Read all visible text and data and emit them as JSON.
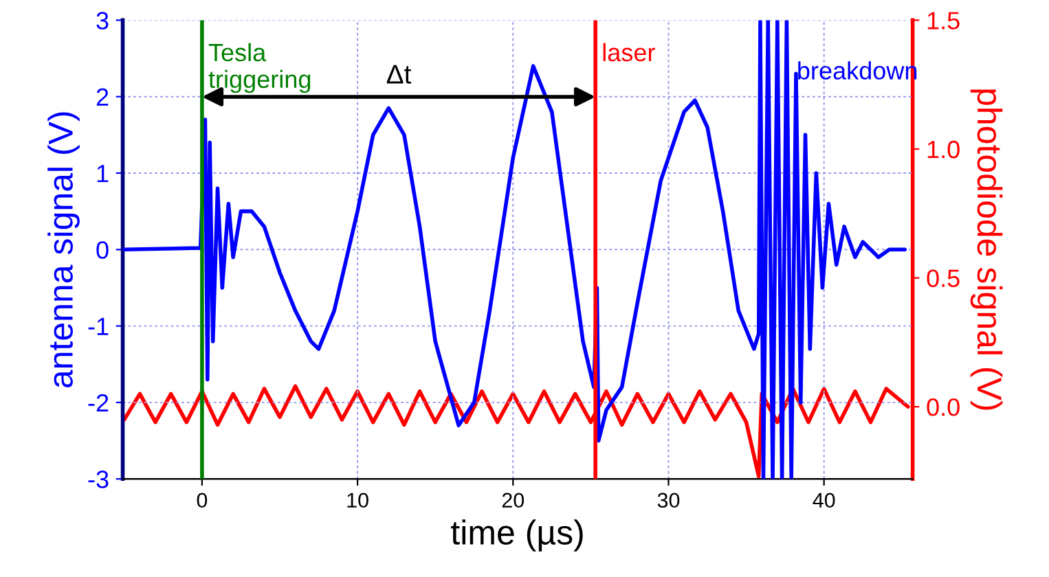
{
  "chart_data": {
    "type": "line",
    "xlabel": "time (µs)",
    "ylabel": "antenna signal (V)",
    "y2label": "photodiode signal (V)",
    "xlim": [
      -5.1,
      45.7
    ],
    "xticks": [
      0,
      10,
      20,
      30,
      40
    ],
    "ylim": [
      -3,
      3
    ],
    "yticks": [
      -3,
      -2,
      -1,
      0,
      1,
      2,
      3
    ],
    "y2lim": [
      -0.28,
      1.5
    ],
    "y2ticks": [
      {
        "value": 0,
        "label": "0.0"
      },
      0.5,
      {
        "value": 1,
        "label": "1.0"
      },
      1.5
    ],
    "grid": true,
    "series": [
      {
        "color": "#0000ff",
        "x": [
          -5,
          -0.1,
          0.2,
          0.35,
          0.5,
          0.7,
          1,
          1.3,
          1.7,
          2,
          2.5,
          3.2,
          4,
          5,
          6,
          7,
          7.5,
          8.5,
          10,
          11,
          12,
          13,
          14,
          15,
          16.5,
          17.5,
          18.5,
          20,
          21.3,
          22.5,
          23.5,
          24.5,
          25.2,
          25.4,
          25.5,
          26,
          27,
          28,
          29.5,
          31,
          31.7,
          32.5,
          33.5,
          34.5,
          35.5,
          35.8,
          35.9,
          36.1,
          36.4,
          36.7,
          37,
          37.3,
          37.6,
          37.9,
          38.2,
          38.5,
          38.8,
          39.1,
          39.5,
          39.9,
          40.3,
          40.8,
          41.3,
          42,
          42.5,
          43.5,
          44.2,
          45.2
        ],
        "values": [
          0,
          0.02,
          1.7,
          -1.7,
          1.4,
          -1.2,
          0.8,
          -0.5,
          0.6,
          -0.1,
          0.5,
          0.5,
          0.3,
          -0.3,
          -0.8,
          -1.2,
          -1.3,
          -0.8,
          0.5,
          1.5,
          1.85,
          1.5,
          0.3,
          -1.2,
          -2.3,
          -2.0,
          -0.8,
          1.2,
          2.4,
          1.8,
          0.3,
          -1.2,
          -1.8,
          -0.5,
          -2.5,
          -2.1,
          -1.8,
          -0.7,
          0.9,
          1.8,
          1.95,
          1.6,
          0.5,
          -0.8,
          -1.3,
          -1.1,
          3,
          -3,
          3,
          -3,
          3,
          -3,
          3,
          -3,
          2.3,
          -2.0,
          1.5,
          -1.3,
          1.0,
          -0.5,
          0.6,
          -0.2,
          0.3,
          -0.1,
          0.1,
          -0.1,
          0,
          0
        ]
      },
      {
        "color": "#ff0000",
        "axis": "y2",
        "x": [
          -5,
          -4,
          -3,
          -2,
          -1,
          0,
          1,
          2,
          3,
          4,
          5,
          6,
          7,
          8,
          9,
          10,
          11,
          12,
          13,
          14,
          15,
          16,
          17,
          18,
          19,
          20,
          21,
          22,
          23,
          24,
          25,
          26,
          27,
          28,
          29,
          30,
          31,
          32,
          33,
          34,
          35,
          35.8,
          36,
          37,
          38,
          39,
          40,
          41,
          42,
          43,
          44,
          45.4
        ],
        "values": [
          -0.05,
          0.05,
          -0.06,
          0.05,
          -0.06,
          0.06,
          -0.07,
          0.05,
          -0.06,
          0.07,
          -0.04,
          0.08,
          -0.04,
          0.07,
          -0.05,
          0.06,
          -0.06,
          0.05,
          -0.07,
          0.06,
          -0.06,
          0.05,
          -0.06,
          0.06,
          -0.06,
          0.05,
          -0.06,
          0.06,
          -0.06,
          0.05,
          -0.06,
          0.06,
          -0.07,
          0.05,
          -0.06,
          0.05,
          -0.06,
          0.06,
          -0.05,
          0.05,
          -0.06,
          -0.27,
          0.05,
          -0.06,
          0.07,
          -0.06,
          0.07,
          -0.06,
          0.06,
          -0.06,
          0.07,
          0
        ]
      }
    ],
    "ref_lines": [
      {
        "axis": "x",
        "value": 0,
        "label": "Tesla\ntriggering",
        "color": "#008000"
      },
      {
        "axis": "x",
        "value": 25.3,
        "label": "laser",
        "color": "#ff0000"
      }
    ],
    "annotations": [
      "Δt",
      "breakdown"
    ]
  }
}
